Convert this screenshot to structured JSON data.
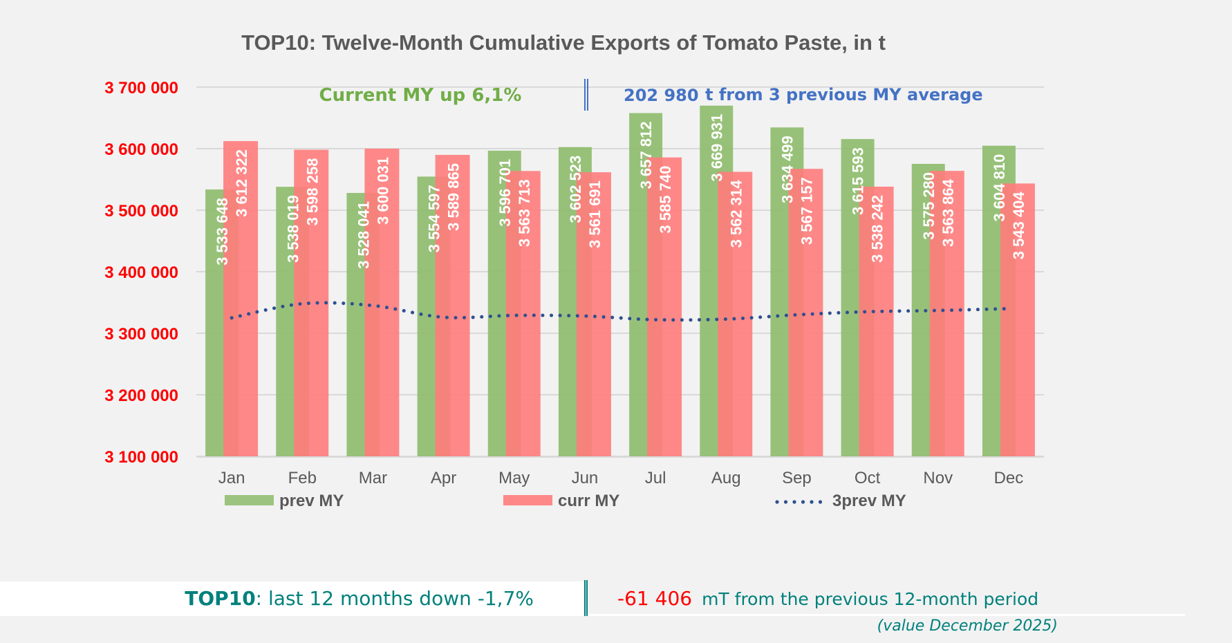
{
  "chart_data": {
    "type": "bar",
    "title": "TOP10: Twelve-Month Cumulative Exports of Tomato Paste, in t",
    "xlabel": "",
    "ylabel": "",
    "ylim": [
      3100000,
      3700000
    ],
    "yticks": [
      3100000,
      3200000,
      3300000,
      3400000,
      3500000,
      3600000,
      3700000
    ],
    "ytick_labels": [
      "3 100 000",
      "3 200 000",
      "3 300 000",
      "3 400 000",
      "3 500 000",
      "3 600 000",
      "3 700 000"
    ],
    "grid": true,
    "legend_position": "bottom",
    "categories": [
      "Jan",
      "Feb",
      "Mar",
      "Apr",
      "May",
      "Jun",
      "Jul",
      "Aug",
      "Sep",
      "Oct",
      "Nov",
      "Dec"
    ],
    "series": [
      {
        "name": "prev MY",
        "type": "bar",
        "color": "#8DBB6B",
        "values": [
          3533648,
          3538019,
          3528041,
          3554597,
          3596701,
          3602523,
          3657812,
          3669931,
          3634499,
          3615593,
          3575280,
          3604810
        ],
        "labels": [
          "3 533 648",
          "3 538 019",
          "3 528 041",
          "3 554 597",
          "3 596 701",
          "3 602 523",
          "3 657 812",
          "3 669 931",
          "3 634 499",
          "3 615 593",
          "3 575 280",
          "3 604 810"
        ]
      },
      {
        "name": "curr MY",
        "type": "bar",
        "color": "#FF7C7C",
        "values": [
          3612322,
          3598258,
          3600031,
          3589865,
          3563713,
          3561691,
          3585740,
          3562314,
          3567157,
          3538242,
          3563864,
          3543404
        ],
        "labels": [
          "3 612 322",
          "3 598 258",
          "3 600 031",
          "3 589 865",
          "3 563 713",
          "3 561 691",
          "3 585 740",
          "3 562 314",
          "3 567 157",
          "3 538 242",
          "3 563 864",
          "3 543 404"
        ]
      },
      {
        "name": "3prev MY",
        "type": "line",
        "style": "dotted",
        "color": "#2F4F8F",
        "values": [
          3325000,
          3348000,
          3345000,
          3326000,
          3329000,
          3328000,
          3322000,
          3323000,
          3330000,
          3335000,
          3337000,
          3340000
        ]
      }
    ],
    "annotations": {
      "current_my": "Current MY up  6,1%",
      "three_prev_value": "202 980",
      "three_prev_text": "t from 3 previous MY average"
    }
  },
  "footer": {
    "label_strong": "TOP10",
    "label_rest": ":  last 12 months down  -1,7%",
    "delta_value": "-61 406",
    "delta_text": "mT from the previous 12-month period",
    "note": "(value December 2025)"
  },
  "colors": {
    "axis_labels": "#FF0000",
    "footer_teal": "#00807C",
    "annotation_green": "#70AD47",
    "annotation_blue": "#4472C4"
  }
}
